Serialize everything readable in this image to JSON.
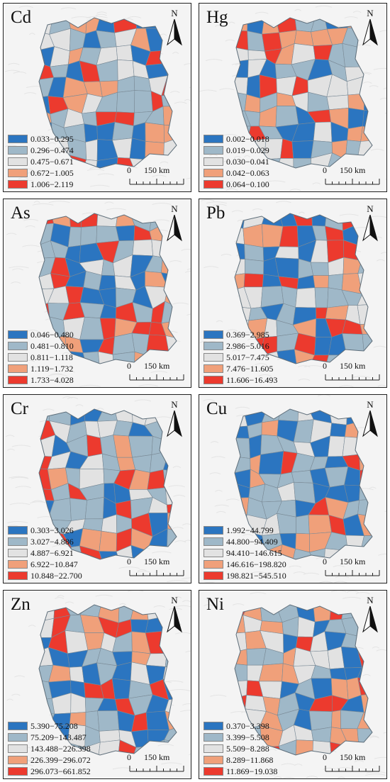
{
  "colors": {
    "class1": "#2b75c0",
    "class2": "#9fb8c8",
    "class3": "#e2e2e2",
    "class4": "#f0a07a",
    "class5": "#ec3a2e",
    "background": "#f4f4f4"
  },
  "north_label": "N",
  "scale": {
    "zero": "0",
    "max": "150 km"
  },
  "panels": [
    {
      "element": "Cd",
      "legend": [
        "0.033−0.295",
        "0.296−0.474",
        "0.475−0.671",
        "0.672−1.005",
        "1.006−2.119"
      ]
    },
    {
      "element": "Hg",
      "legend": [
        "0.002−0.018",
        "0.019−0.029",
        "0.030−0.041",
        "0.042−0.063",
        "0.064−0.100"
      ]
    },
    {
      "element": "As",
      "legend": [
        "0.046−0.480",
        "0.481−0.810",
        "0.811−1.118",
        "1.119−1.732",
        "1.733−4.028"
      ]
    },
    {
      "element": "Pb",
      "legend": [
        "0.369−2.985",
        "2.986−5.016",
        "5.017−7.475",
        "7.476−11.605",
        "11.606−16.493"
      ]
    },
    {
      "element": "Cr",
      "legend": [
        "0.303−3.026",
        "3.027−4.886",
        "4.887−6.921",
        "6.922−10.847",
        "10.848−22.700"
      ]
    },
    {
      "element": "Cu",
      "legend": [
        "1.992−44.799",
        "44.800−94.409",
        "94.410−146.615",
        "146.616−198.820",
        "198.821−545.510"
      ]
    },
    {
      "element": "Zn",
      "legend": [
        "5.390−75.208",
        "75.209−143.487",
        "143.488−226.398",
        "226.399−296.072",
        "296.073−661.852"
      ]
    },
    {
      "element": "Ni",
      "legend": [
        "0.370−3.398",
        "3.399−5.508",
        "5.509−8.288",
        "8.289−11.868",
        "11.869−19.038"
      ]
    }
  ]
}
